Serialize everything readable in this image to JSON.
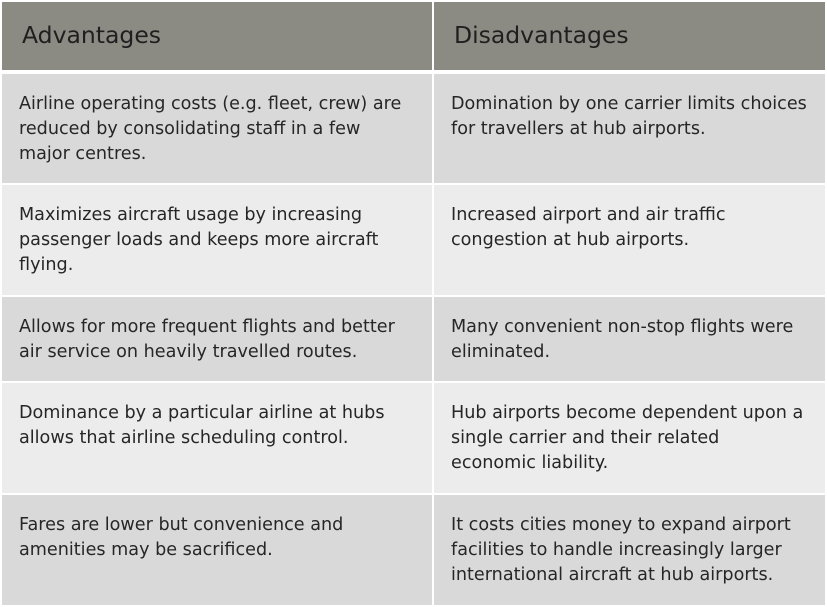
{
  "table": {
    "headers": {
      "advantages": "Advantages",
      "disadvantages": "Disadvantages"
    },
    "rows": [
      {
        "advantage": "Airline operating costs (e.g. fleet, crew) are reduced by consolidating staff in a few major centres.",
        "disadvantage": "Domination by one carrier limits choices for travellers at hub airports."
      },
      {
        "advantage": "Maximizes aircraft usage by increasing passenger loads and keeps more aircraft flying.",
        "disadvantage": "Increased airport and air traffic congestion at hub airports."
      },
      {
        "advantage": "Allows for more frequent flights and better air service on heavily travelled routes.",
        "disadvantage": "Many convenient non-stop flights were eliminated."
      },
      {
        "advantage": "Dominance by a particular airline at hubs allows that airline scheduling control.",
        "disadvantage": "Hub airports become dependent upon a single carrier and their related economic liability."
      },
      {
        "advantage": "Fares are lower but convenience and amenities may be sacrificed.",
        "disadvantage": "It costs cities money to expand airport facilities to handle increasingly larger international aircraft at hub airports."
      }
    ]
  }
}
